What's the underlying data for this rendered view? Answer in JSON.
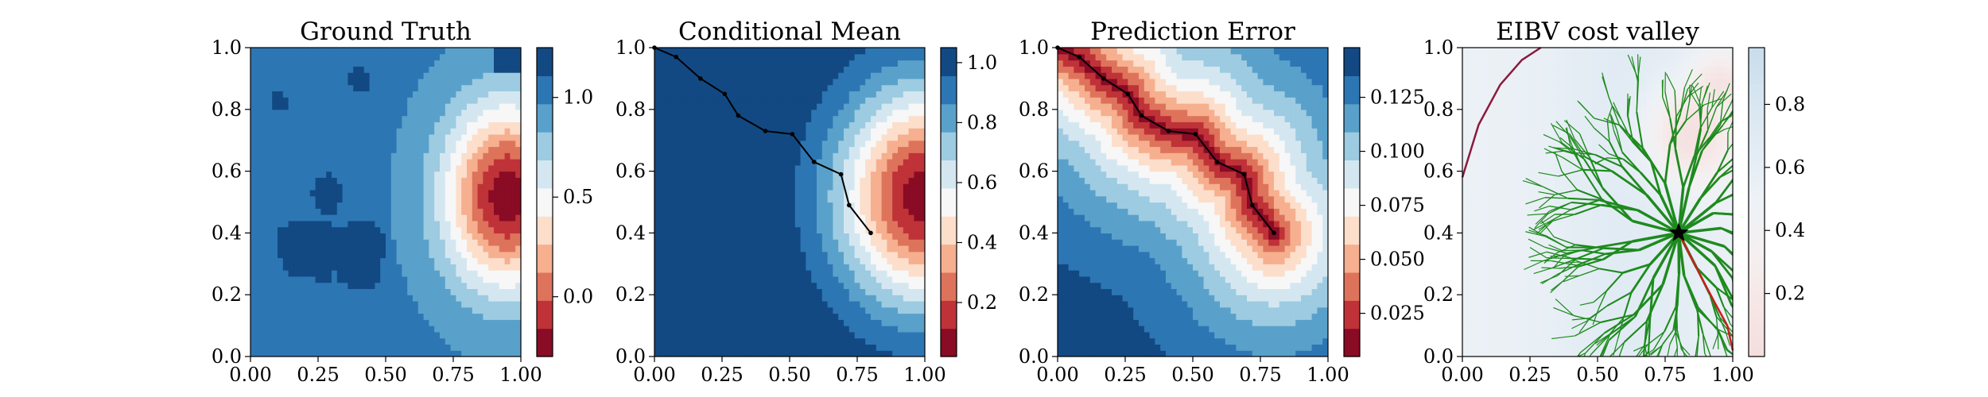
{
  "chart_data": [
    {
      "type": "heatmap",
      "title": "Ground Truth",
      "xlim": [
        0.0,
        1.0
      ],
      "ylim": [
        0.0,
        1.0
      ],
      "x_ticks": [
        "0.00",
        "0.25",
        "0.50",
        "0.75",
        "1.00"
      ],
      "y_ticks": [
        "0.0",
        "0.2",
        "0.4",
        "0.6",
        "0.8",
        "1.0"
      ],
      "colormap": "RdBu",
      "colorbar": {
        "range": [
          -0.3,
          1.25
        ],
        "ticks": [
          {
            "value": 0.0,
            "label": "0.0"
          },
          {
            "value": 0.5,
            "label": "0.5"
          },
          {
            "value": 1.0,
            "label": "1.0"
          }
        ]
      },
      "field": {
        "background": 1.0,
        "hotspot": {
          "x": 0.95,
          "y": 0.52,
          "min_value": -0.25,
          "radius": 0.33
        },
        "high_patches": [
          {
            "x": 0.22,
            "y": 0.35,
            "rx": 0.12,
            "ry": 0.1
          },
          {
            "x": 0.4,
            "y": 0.34,
            "rx": 0.09,
            "ry": 0.12
          },
          {
            "x": 0.28,
            "y": 0.52,
            "rx": 0.05,
            "ry": 0.07
          },
          {
            "x": 0.4,
            "y": 0.9,
            "rx": 0.04,
            "ry": 0.04
          },
          {
            "x": 0.1,
            "y": 0.82,
            "rx": 0.03,
            "ry": 0.03
          }
        ]
      }
    },
    {
      "type": "heatmap",
      "title": "Conditional Mean",
      "xlim": [
        0.0,
        1.0
      ],
      "ylim": [
        0.0,
        1.0
      ],
      "x_ticks": [
        "0.00",
        "0.25",
        "0.50",
        "0.75",
        "1.00"
      ],
      "y_ticks": [
        "0.0",
        "0.2",
        "0.4",
        "0.6",
        "0.8",
        "1.0"
      ],
      "colormap": "RdBu",
      "colorbar": {
        "range": [
          0.02,
          1.05
        ],
        "ticks": [
          {
            "value": 0.2,
            "label": "0.2"
          },
          {
            "value": 0.4,
            "label": "0.4"
          },
          {
            "value": 0.6,
            "label": "0.6"
          },
          {
            "value": 0.8,
            "label": "0.8"
          },
          {
            "value": 1.0,
            "label": "1.0"
          }
        ]
      },
      "field": {
        "background": 1.05,
        "hotspot": {
          "x": 1.0,
          "y": 0.52,
          "min_value": 0.05,
          "radius": 0.4
        }
      },
      "path": [
        [
          0.0,
          1.0
        ],
        [
          0.08,
          0.97
        ],
        [
          0.17,
          0.9
        ],
        [
          0.26,
          0.85
        ],
        [
          0.31,
          0.78
        ],
        [
          0.41,
          0.73
        ],
        [
          0.51,
          0.72
        ],
        [
          0.59,
          0.63
        ],
        [
          0.69,
          0.59
        ],
        [
          0.72,
          0.49
        ],
        [
          0.8,
          0.4
        ]
      ]
    },
    {
      "type": "heatmap",
      "title": "Prediction Error",
      "xlim": [
        0.0,
        1.0
      ],
      "ylim": [
        0.0,
        1.0
      ],
      "x_ticks": [
        "0.00",
        "0.25",
        "0.50",
        "0.75",
        "1.00"
      ],
      "y_ticks": [
        "0.0",
        "0.2",
        "0.4",
        "0.6",
        "0.8",
        "1.0"
      ],
      "colormap": "RdBu",
      "colorbar": {
        "range": [
          0.005,
          0.148
        ],
        "ticks": [
          {
            "value": 0.025,
            "label": "0.025"
          },
          {
            "value": 0.05,
            "label": "0.050"
          },
          {
            "value": 0.075,
            "label": "0.075"
          },
          {
            "value": 0.1,
            "label": "0.100"
          },
          {
            "value": 0.125,
            "label": "0.125"
          }
        ]
      },
      "field": {
        "near_path_value": 0.01,
        "far_value": 0.148,
        "decay_distance": 0.38
      },
      "path": [
        [
          0.0,
          1.0
        ],
        [
          0.08,
          0.97
        ],
        [
          0.17,
          0.9
        ],
        [
          0.26,
          0.85
        ],
        [
          0.31,
          0.78
        ],
        [
          0.41,
          0.73
        ],
        [
          0.51,
          0.72
        ],
        [
          0.59,
          0.63
        ],
        [
          0.69,
          0.59
        ],
        [
          0.72,
          0.49
        ],
        [
          0.8,
          0.4
        ]
      ]
    },
    {
      "type": "heatmap",
      "title": "EIBV cost valley",
      "xlim": [
        0.0,
        1.0
      ],
      "ylim": [
        0.0,
        1.0
      ],
      "x_ticks": [
        "0.00",
        "0.25",
        "0.50",
        "0.75",
        "1.00"
      ],
      "y_ticks": [
        "0.0",
        "0.2",
        "0.4",
        "0.6",
        "0.8",
        "1.0"
      ],
      "colormap": "RdBu (light)",
      "colorbar": {
        "range": [
          0.0,
          0.98
        ],
        "ticks": [
          {
            "value": 0.2,
            "label": "0.2"
          },
          {
            "value": 0.4,
            "label": "0.4"
          },
          {
            "value": 0.6,
            "label": "0.6"
          },
          {
            "value": 0.8,
            "label": "0.8"
          }
        ]
      },
      "current_location": [
        0.8,
        0.4
      ],
      "tree_color": "#1e8a1e",
      "boundary_color": "#8b1a3a",
      "chosen_path_color": "#c81e1e",
      "obstacle_arc": [
        [
          0.0,
          0.58
        ],
        [
          0.06,
          0.75
        ],
        [
          0.14,
          0.88
        ],
        [
          0.22,
          0.96
        ],
        [
          0.29,
          1.0
        ]
      ],
      "chosen_path": [
        [
          0.8,
          0.4
        ],
        [
          0.87,
          0.28
        ],
        [
          0.93,
          0.18
        ],
        [
          0.98,
          0.1
        ],
        [
          1.0,
          0.02
        ]
      ]
    }
  ]
}
